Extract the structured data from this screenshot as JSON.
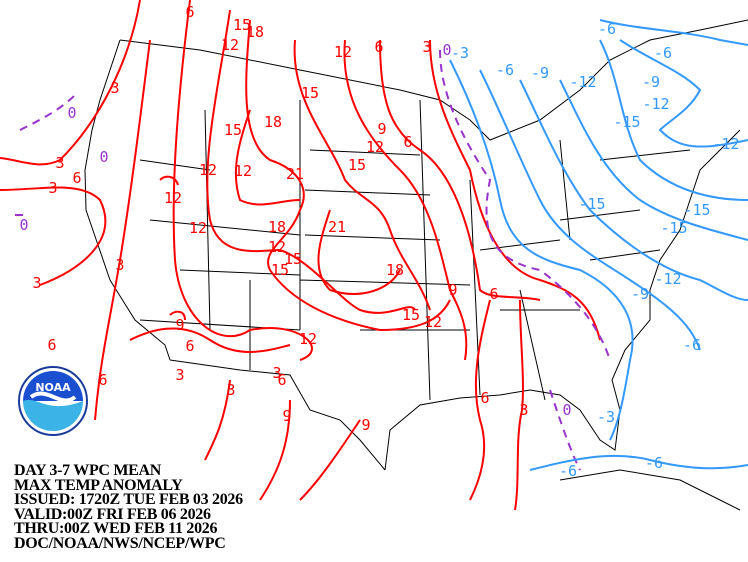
{
  "title_block": {
    "line1": "DAY 3-7 WPC MEAN",
    "line2": "MAX TEMP ANOMALY",
    "line3": "ISSUED: 1720Z TUE FEB 03 2026",
    "line4": "VALID:00Z FRI FEB 06 2026",
    "line5": "THRU:00Z WED FEB 11 2026",
    "line6": "DOC/NOAA/NWS/NCEP/WPC"
  },
  "logo": {
    "text": "NOAA"
  },
  "colors": {
    "positive": "#ff0000",
    "negative": "#3399ff",
    "zero": "#9933cc",
    "borders": "#000000"
  },
  "contour_labels": {
    "red": [
      "6",
      "15",
      "18",
      "12",
      "12",
      "6",
      "3",
      "3",
      "15",
      "18",
      "15",
      "9",
      "12",
      "6",
      "3",
      "6",
      "3",
      "12",
      "12",
      "21",
      "15",
      "12",
      "12",
      "18",
      "21",
      "12",
      "15",
      "15",
      "18",
      "3",
      "3",
      "9",
      "6",
      "15",
      "12",
      "9",
      "6",
      "12",
      "6",
      "3",
      "3",
      "6",
      "6",
      "3",
      "9",
      "9",
      "6",
      "3"
    ],
    "zero": [
      "0",
      "0",
      "0",
      "0",
      "0"
    ],
    "blue": [
      "6",
      "6",
      "3",
      "6",
      "9",
      "12",
      "9",
      "12",
      "15",
      "12",
      "15",
      "15",
      "15",
      "12",
      "9",
      "6",
      "3",
      "6",
      "6"
    ]
  }
}
